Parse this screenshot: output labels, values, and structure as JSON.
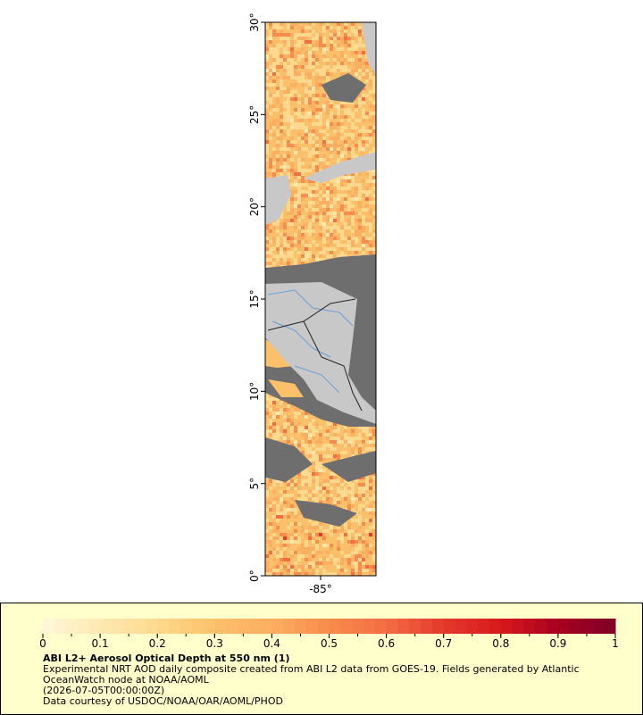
{
  "map": {
    "xlim": [
      -88,
      -82
    ],
    "ylim": [
      0,
      30
    ],
    "xticks": [
      {
        "value": -85,
        "label": "-85°"
      }
    ],
    "yticks": [
      {
        "value": 0,
        "label": "0°"
      },
      {
        "value": 5,
        "label": "5°"
      },
      {
        "value": 10,
        "label": "10°"
      },
      {
        "value": 15,
        "label": "15°"
      },
      {
        "value": 20,
        "label": "20°"
      },
      {
        "value": 25,
        "label": "25°"
      },
      {
        "value": 30,
        "label": "30°"
      }
    ]
  },
  "colorbar": {
    "clim": [
      0,
      1
    ],
    "ticks": [
      0,
      0.1,
      0.2,
      0.3,
      0.4,
      0.5,
      0.6,
      0.7,
      0.8,
      0.9,
      1
    ],
    "colors": [
      "#fff7dc",
      "#fee8b0",
      "#fed98e",
      "#fdc06a",
      "#fdae61",
      "#f88c4c",
      "#f46d43",
      "#e4392b",
      "#d7191c",
      "#a8001f",
      "#800026"
    ]
  },
  "legend": {
    "title": "ABI L2+ Aerosol Optical Depth at 550 nm (1)",
    "description": [
      "Experimental NRT AOD daily composite created from ABI L2 data from GOES-19. Fields generated by Atlantic",
      "OceanWatch node at NOAA/AOML"
    ],
    "time": "(2026-07-05T00:00:00Z)",
    "credit": "Data courtesy of USDOC/NOAA/OAR/AOML/PHOD"
  }
}
